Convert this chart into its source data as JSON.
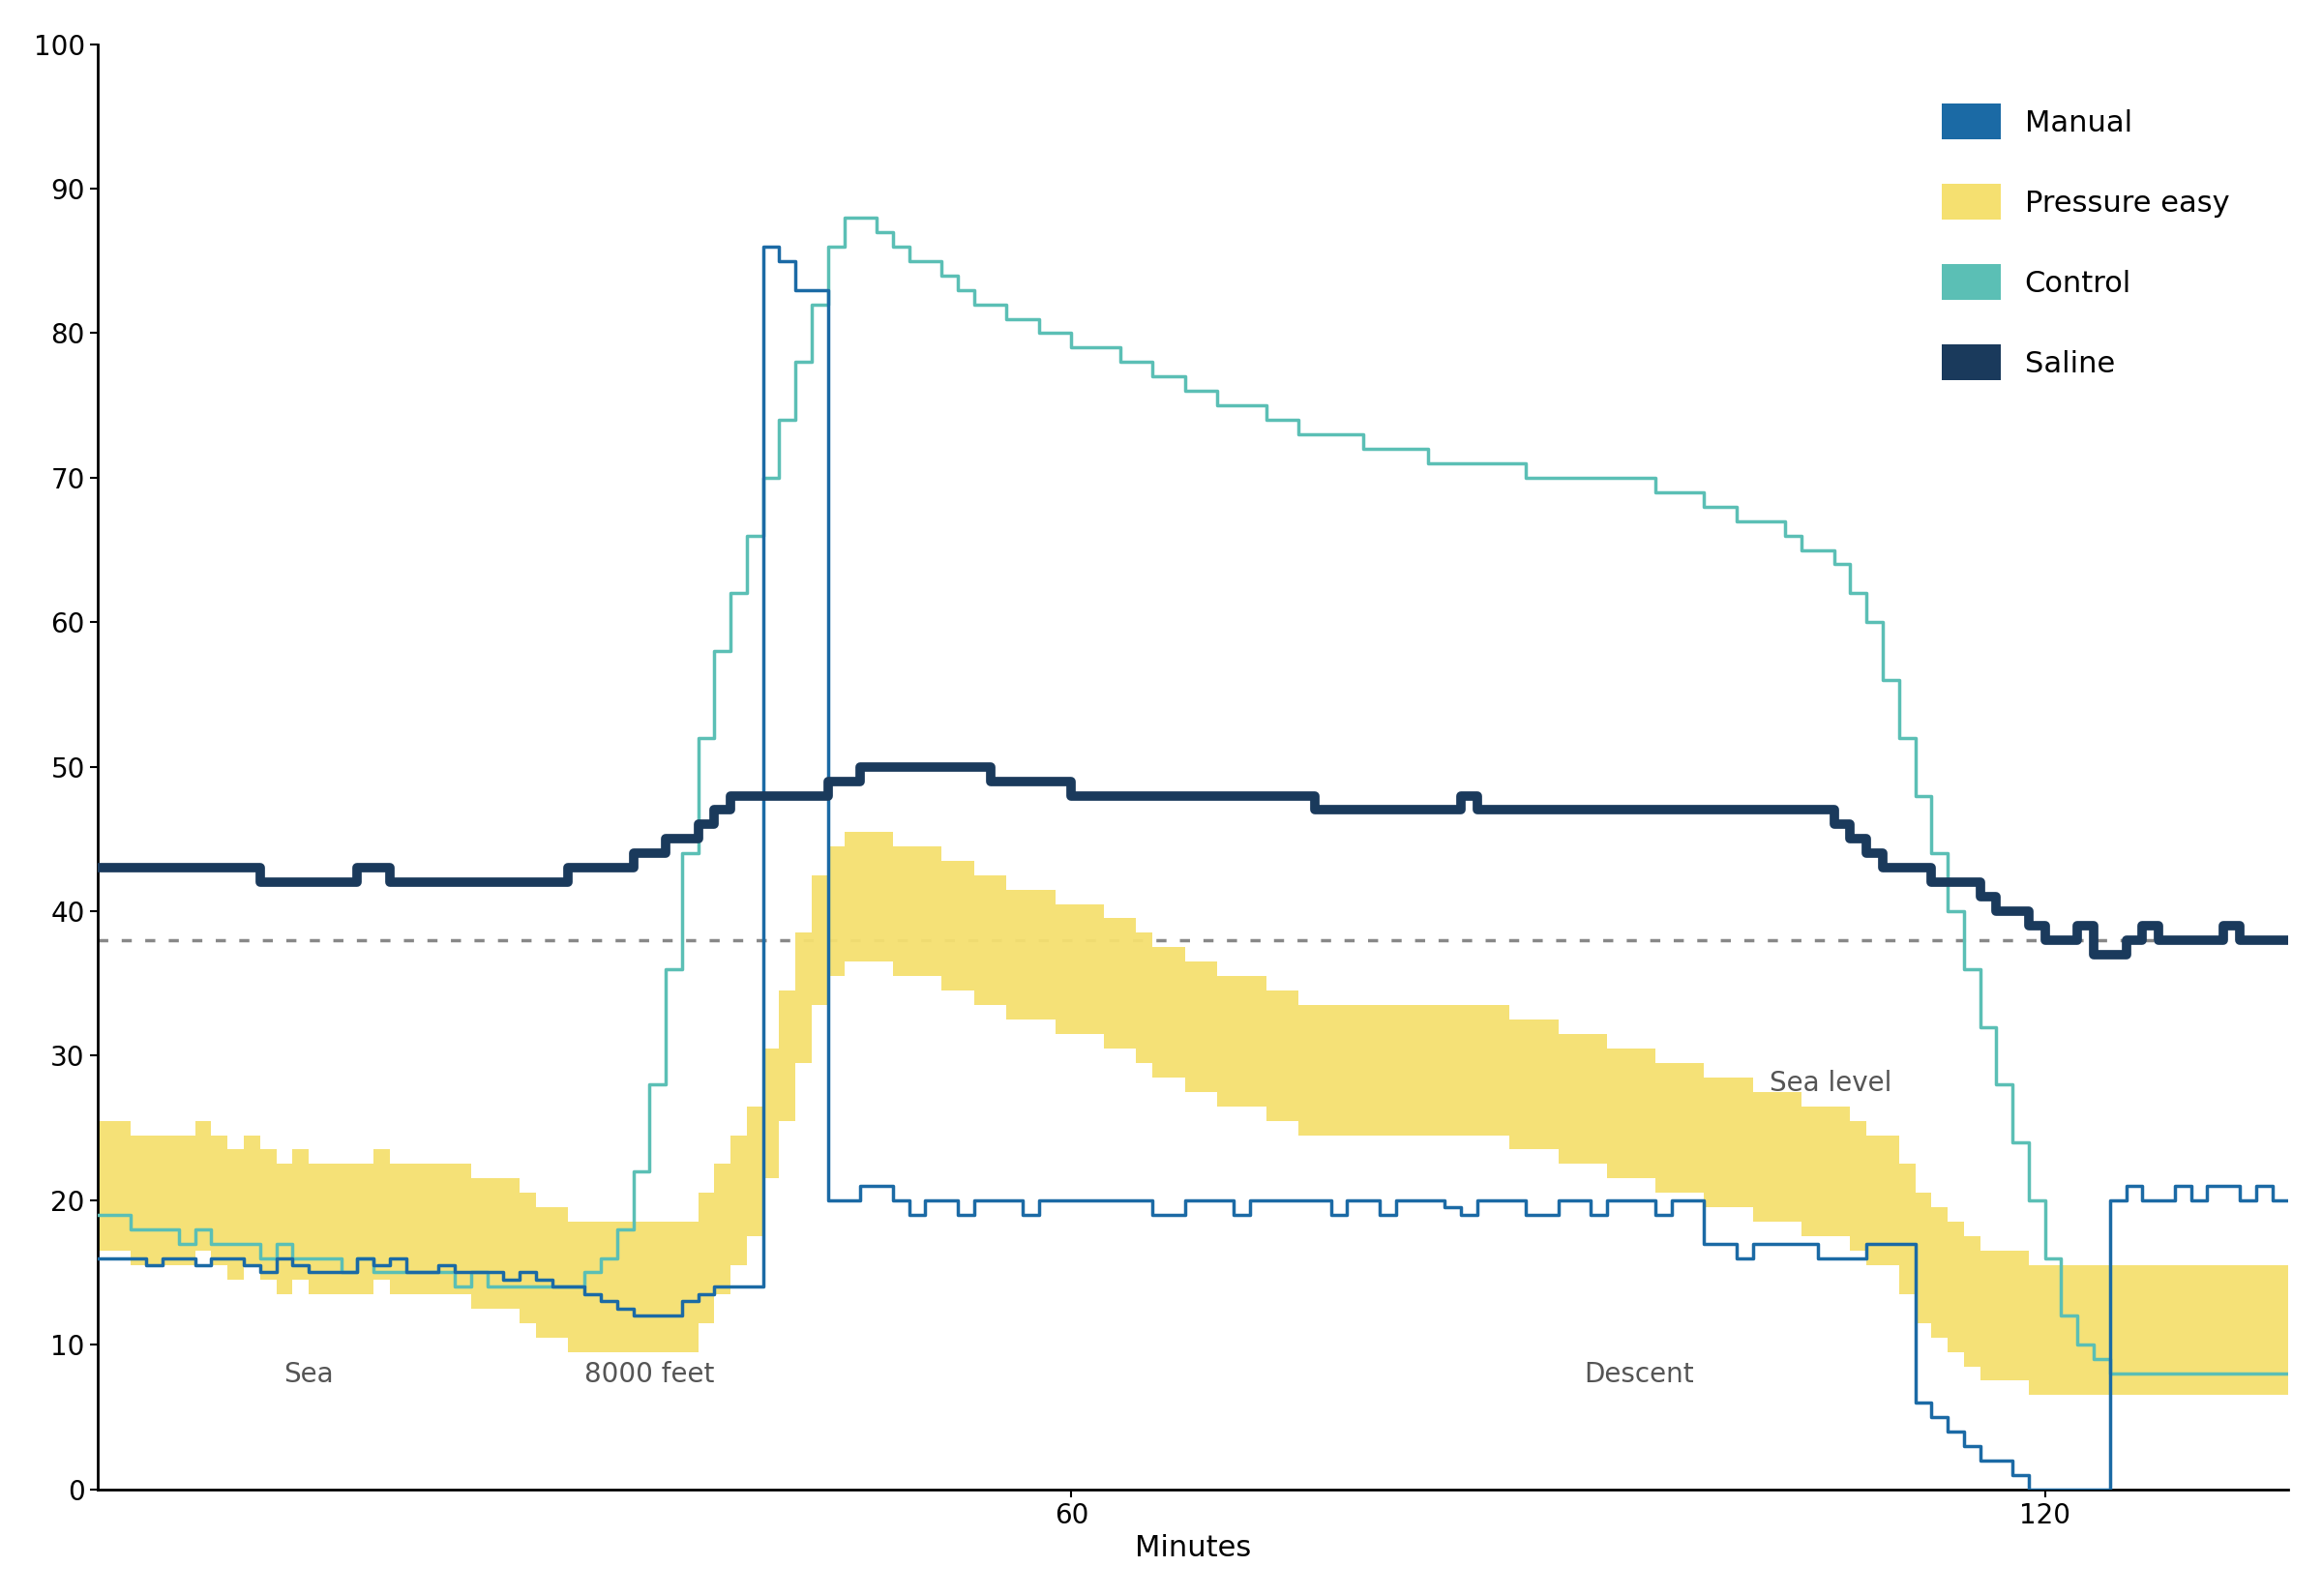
{
  "title": "",
  "xlabel": "Minutes",
  "ylabel": "",
  "ylim": [
    0,
    100
  ],
  "xlim": [
    0,
    135
  ],
  "yticks": [
    0,
    10,
    20,
    30,
    40,
    50,
    60,
    70,
    80,
    90,
    100
  ],
  "xticks": [
    60,
    120
  ],
  "dotted_line_y": 38,
  "colors": {
    "manual": "#1B6AA5",
    "pressure_easy": "#F5E070",
    "control": "#5BBFB5",
    "saline": "#1A3A5C",
    "dotted": "#888888"
  },
  "annotation_fontsize": 20,
  "label_fontsize": 22,
  "tick_fontsize": 20,
  "manual_x": [
    0,
    1,
    2,
    3,
    4,
    5,
    6,
    7,
    8,
    9,
    10,
    11,
    12,
    13,
    14,
    15,
    16,
    17,
    18,
    19,
    20,
    21,
    22,
    23,
    24,
    25,
    26,
    27,
    28,
    29,
    30,
    31,
    32,
    33,
    34,
    35,
    36,
    37,
    38,
    39,
    40,
    41,
    42,
    43,
    44,
    44.2,
    44.4,
    44.6,
    44.8,
    45,
    46,
    47,
    48,
    49,
    50,
    51,
    52,
    53,
    54,
    55,
    56,
    57,
    58,
    59,
    60,
    61,
    62,
    63,
    64,
    65,
    66,
    67,
    68,
    69,
    70,
    71,
    72,
    73,
    74,
    75,
    76,
    77,
    78,
    79,
    80,
    81,
    82,
    83,
    84,
    85,
    86,
    87,
    88,
    89,
    90,
    91,
    92,
    93,
    94,
    95,
    96,
    97,
    98,
    99,
    100,
    101,
    102,
    103,
    104,
    105,
    106,
    107,
    108,
    109,
    110,
    111,
    112,
    113,
    114,
    115,
    116,
    117,
    118,
    119,
    120,
    121,
    122,
    123,
    124,
    125,
    126,
    127,
    128,
    129,
    130,
    131,
    132,
    133,
    134,
    135
  ],
  "manual_y": [
    16,
    16,
    16,
    15.5,
    16,
    16,
    15.5,
    16,
    16,
    15.5,
    15,
    16,
    15.5,
    15,
    15,
    15,
    16,
    15.5,
    16,
    15,
    15,
    15.5,
    15,
    15,
    15,
    14.5,
    15,
    14.5,
    14,
    14,
    13.5,
    13,
    12.5,
    12,
    12,
    12,
    13,
    13.5,
    14,
    14,
    14,
    86,
    85,
    83,
    83,
    83,
    83,
    83,
    83,
    20,
    20,
    21,
    21,
    20,
    19,
    20,
    20,
    19,
    20,
    20,
    20,
    19,
    20,
    20,
    20,
    20,
    20,
    20,
    20,
    19,
    19,
    20,
    20,
    20,
    19,
    20,
    20,
    20,
    20,
    20,
    19,
    20,
    20,
    19,
    20,
    20,
    20,
    19.5,
    19,
    20,
    20,
    20,
    19,
    19,
    20,
    20,
    19,
    20,
    20,
    20,
    19,
    20,
    20,
    17,
    17,
    16,
    17,
    17,
    17,
    17,
    16,
    16,
    16,
    17,
    17,
    17,
    6,
    5,
    4,
    3,
    2,
    2,
    1,
    0,
    0,
    0,
    0,
    0,
    20,
    21,
    20,
    20,
    21,
    20,
    21,
    21,
    20,
    21,
    20,
    20
  ],
  "pressure_easy_x": [
    0,
    1,
    2,
    3,
    4,
    5,
    6,
    7,
    8,
    9,
    10,
    11,
    12,
    13,
    14,
    15,
    16,
    17,
    18,
    19,
    20,
    21,
    22,
    23,
    24,
    25,
    26,
    27,
    28,
    29,
    30,
    31,
    32,
    33,
    34,
    35,
    36,
    37,
    38,
    39,
    40,
    41,
    42,
    43,
    44,
    45,
    46,
    47,
    48,
    49,
    50,
    51,
    52,
    53,
    54,
    55,
    56,
    57,
    58,
    59,
    60,
    61,
    62,
    63,
    64,
    65,
    66,
    67,
    68,
    69,
    70,
    71,
    72,
    73,
    74,
    75,
    76,
    77,
    78,
    79,
    80,
    81,
    82,
    83,
    84,
    85,
    86,
    87,
    88,
    89,
    90,
    91,
    92,
    93,
    94,
    95,
    96,
    97,
    98,
    99,
    100,
    101,
    102,
    103,
    104,
    105,
    106,
    107,
    108,
    109,
    110,
    111,
    112,
    113,
    114,
    115,
    116,
    117,
    118,
    119,
    120,
    121,
    122,
    123,
    124,
    125,
    126,
    127,
    128,
    129,
    130,
    131,
    132,
    133,
    134,
    135
  ],
  "pressure_easy_y": [
    21,
    21,
    20,
    20,
    20,
    20,
    21,
    20,
    19,
    20,
    19,
    18,
    19,
    18,
    18,
    18,
    18,
    19,
    18,
    18,
    18,
    18,
    18,
    17,
    17,
    17,
    16,
    15,
    15,
    14,
    14,
    14,
    14,
    14,
    14,
    14,
    14,
    16,
    18,
    20,
    22,
    26,
    30,
    34,
    38,
    40,
    41,
    41,
    41,
    40,
    40,
    40,
    39,
    39,
    38,
    38,
    37,
    37,
    37,
    36,
    36,
    36,
    35,
    35,
    34,
    33,
    33,
    32,
    32,
    31,
    31,
    31,
    30,
    30,
    29,
    29,
    29,
    29,
    29,
    29,
    29,
    29,
    29,
    29,
    29,
    29,
    29,
    28,
    28,
    28,
    27,
    27,
    27,
    26,
    26,
    26,
    25,
    25,
    25,
    24,
    24,
    24,
    23,
    23,
    23,
    22,
    22,
    22,
    21,
    20,
    20,
    18,
    16,
    15,
    14,
    13,
    12,
    12,
    12,
    11,
    11,
    11,
    11,
    11,
    11,
    11,
    11,
    11,
    11,
    11,
    11,
    11,
    11,
    11,
    11,
    12
  ],
  "control_x": [
    0,
    1,
    2,
    3,
    4,
    5,
    6,
    7,
    8,
    9,
    10,
    11,
    12,
    13,
    14,
    15,
    16,
    17,
    18,
    19,
    20,
    21,
    22,
    23,
    24,
    25,
    26,
    27,
    28,
    29,
    30,
    31,
    32,
    33,
    34,
    35,
    36,
    37,
    38,
    39,
    40,
    41,
    42,
    43,
    44,
    45,
    46,
    47,
    48,
    49,
    50,
    51,
    52,
    53,
    54,
    55,
    56,
    57,
    58,
    59,
    60,
    61,
    62,
    63,
    64,
    65,
    66,
    67,
    68,
    69,
    70,
    71,
    72,
    73,
    74,
    75,
    76,
    77,
    78,
    79,
    80,
    81,
    82,
    83,
    84,
    85,
    86,
    87,
    88,
    89,
    90,
    91,
    92,
    93,
    94,
    95,
    96,
    97,
    98,
    99,
    100,
    101,
    102,
    103,
    104,
    105,
    106,
    107,
    108,
    109,
    110,
    111,
    112,
    113,
    114,
    115,
    116,
    117,
    118,
    119,
    120,
    121,
    122,
    123,
    124,
    125,
    126,
    127,
    128,
    129,
    130,
    131,
    132,
    133,
    134,
    135
  ],
  "control_y": [
    19,
    19,
    18,
    18,
    18,
    17,
    18,
    17,
    17,
    17,
    16,
    17,
    16,
    16,
    16,
    15,
    16,
    15,
    15,
    15,
    15,
    15,
    14,
    15,
    14,
    14,
    14,
    14,
    14,
    14,
    15,
    16,
    18,
    22,
    28,
    36,
    44,
    52,
    58,
    62,
    66,
    70,
    74,
    78,
    82,
    86,
    88,
    88,
    87,
    86,
    85,
    85,
    84,
    83,
    82,
    82,
    81,
    81,
    80,
    80,
    79,
    79,
    79,
    78,
    78,
    77,
    77,
    76,
    76,
    75,
    75,
    75,
    74,
    74,
    73,
    73,
    73,
    73,
    72,
    72,
    72,
    72,
    71,
    71,
    71,
    71,
    71,
    71,
    70,
    70,
    70,
    70,
    70,
    70,
    70,
    70,
    69,
    69,
    69,
    68,
    68,
    67,
    67,
    67,
    66,
    65,
    65,
    64,
    62,
    60,
    56,
    52,
    48,
    44,
    40,
    36,
    32,
    28,
    24,
    20,
    16,
    12,
    10,
    9,
    8,
    8,
    8,
    8,
    8,
    8,
    8,
    8,
    8,
    8,
    8,
    8
  ],
  "saline_x": [
    0,
    1,
    2,
    3,
    4,
    5,
    6,
    7,
    8,
    9,
    10,
    11,
    12,
    13,
    14,
    15,
    16,
    17,
    18,
    19,
    20,
    21,
    22,
    23,
    24,
    25,
    26,
    27,
    28,
    29,
    30,
    31,
    32,
    33,
    34,
    35,
    36,
    37,
    38,
    39,
    40,
    41,
    42,
    43,
    44,
    45,
    46,
    47,
    48,
    49,
    50,
    51,
    52,
    53,
    54,
    55,
    56,
    57,
    58,
    59,
    60,
    61,
    62,
    63,
    64,
    65,
    66,
    67,
    68,
    69,
    70,
    71,
    72,
    73,
    74,
    75,
    76,
    77,
    78,
    79,
    80,
    81,
    82,
    83,
    84,
    85,
    86,
    87,
    88,
    89,
    90,
    91,
    92,
    93,
    94,
    95,
    96,
    97,
    98,
    99,
    100,
    101,
    102,
    103,
    104,
    105,
    106,
    107,
    108,
    109,
    110,
    111,
    112,
    113,
    114,
    115,
    116,
    117,
    118,
    119,
    120,
    121,
    122,
    123,
    124,
    125,
    126,
    127,
    128,
    129,
    130,
    131,
    132,
    133,
    134,
    135
  ],
  "saline_y": [
    43,
    43,
    43,
    43,
    43,
    43,
    43,
    43,
    43,
    43,
    42,
    42,
    42,
    42,
    42,
    42,
    43,
    43,
    42,
    42,
    42,
    42,
    42,
    42,
    42,
    42,
    42,
    42,
    42,
    43,
    43,
    43,
    43,
    44,
    44,
    45,
    45,
    46,
    47,
    48,
    48,
    48,
    48,
    48,
    48,
    49,
    49,
    50,
    50,
    50,
    50,
    50,
    50,
    50,
    50,
    49,
    49,
    49,
    49,
    49,
    48,
    48,
    48,
    48,
    48,
    48,
    48,
    48,
    48,
    48,
    48,
    48,
    48,
    48,
    48,
    47,
    47,
    47,
    47,
    47,
    47,
    47,
    47,
    47,
    48,
    47,
    47,
    47,
    47,
    47,
    47,
    47,
    47,
    47,
    47,
    47,
    47,
    47,
    47,
    47,
    47,
    47,
    47,
    47,
    47,
    47,
    47,
    46,
    45,
    44,
    43,
    43,
    43,
    42,
    42,
    42,
    41,
    40,
    40,
    39,
    38,
    38,
    39,
    37,
    37,
    38,
    39,
    38,
    38,
    38,
    38,
    39,
    38,
    38,
    38,
    38
  ]
}
